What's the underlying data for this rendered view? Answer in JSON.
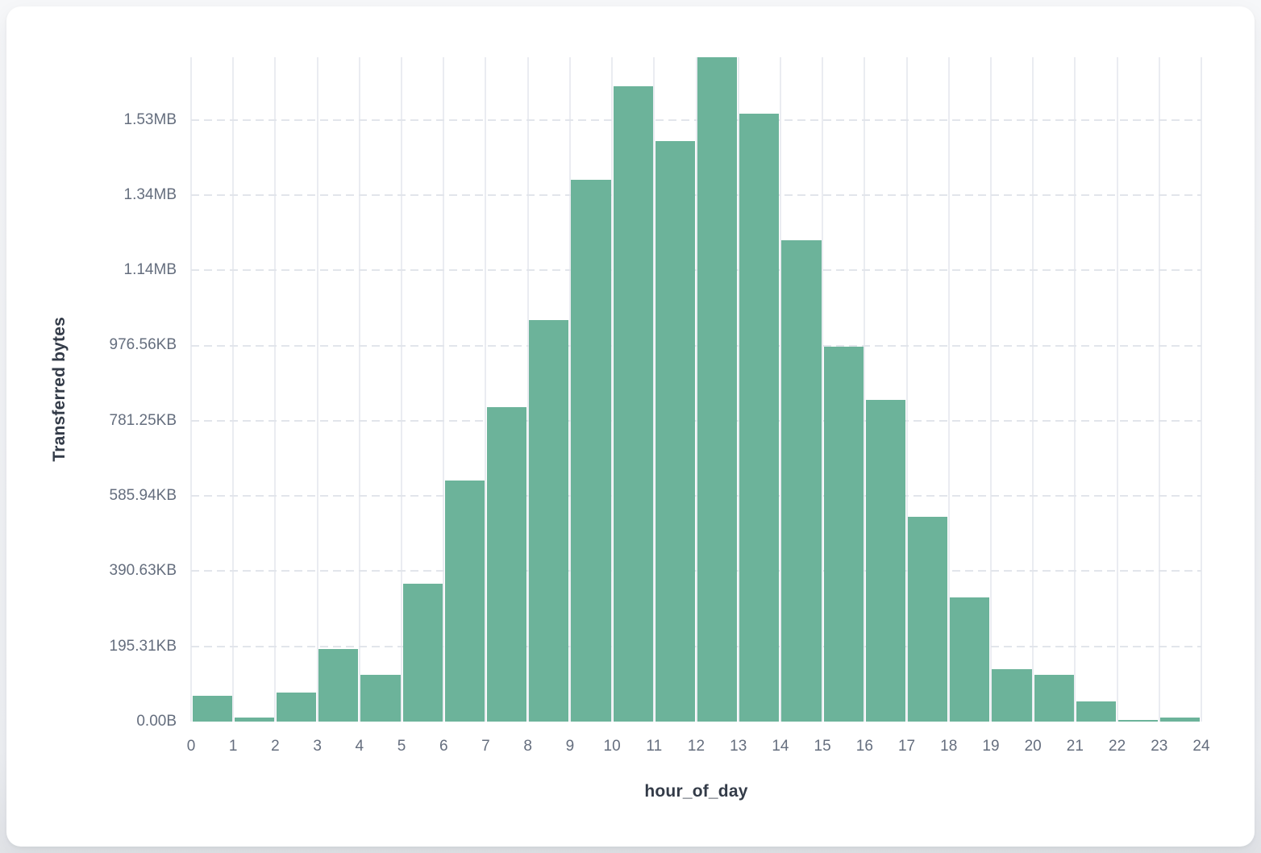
{
  "chart_data": {
    "type": "bar",
    "title": "",
    "xlabel": "hour_of_day",
    "ylabel": "Transferred bytes",
    "x_bin_start_hours": [
      0,
      1,
      2,
      3,
      4,
      5,
      6,
      7,
      8,
      9,
      10,
      11,
      12,
      13,
      14,
      15,
      16,
      17,
      18,
      19,
      20,
      21,
      22,
      23
    ],
    "values_bytes": [
      68600,
      11600,
      76500,
      193800,
      123700,
      365900,
      640900,
      835400,
      1068400,
      1441400,
      1689200,
      1542800,
      1766300,
      1615600,
      1280600,
      997700,
      855300,
      544500,
      330100,
      138700,
      124300,
      54400,
      4300,
      10100
    ],
    "x_tick_labels": [
      "0",
      "1",
      "2",
      "3",
      "4",
      "5",
      "6",
      "7",
      "8",
      "9",
      "10",
      "11",
      "12",
      "13",
      "14",
      "15",
      "16",
      "17",
      "18",
      "19",
      "20",
      "21",
      "22",
      "23",
      "24"
    ],
    "y_ticks": [
      {
        "label": "0.00B",
        "bytes": 0
      },
      {
        "label": "195.31KB",
        "bytes": 200000
      },
      {
        "label": "390.63KB",
        "bytes": 400000
      },
      {
        "label": "585.94KB",
        "bytes": 600000
      },
      {
        "label": "781.25KB",
        "bytes": 800000
      },
      {
        "label": "976.56KB",
        "bytes": 1000000
      },
      {
        "label": "1.14MB",
        "bytes": 1200000
      },
      {
        "label": "1.34MB",
        "bytes": 1400000
      },
      {
        "label": "1.53MB",
        "bytes": 1600000
      }
    ],
    "xlim": [
      0,
      24
    ],
    "ylim_bytes": [
      0,
      1766300
    ],
    "legend": "none",
    "grid": {
      "vertical": "solid",
      "horizontal": "dashed"
    },
    "colors": {
      "bar": "#6cb39a",
      "grid_vertical": "#eaecf1",
      "grid_horizontal": "#e2e5eb",
      "tick_text": "#656e7e",
      "axis_title_text": "#333b48",
      "card_background": "#ffffff",
      "page_background": "#eef0f3"
    }
  }
}
